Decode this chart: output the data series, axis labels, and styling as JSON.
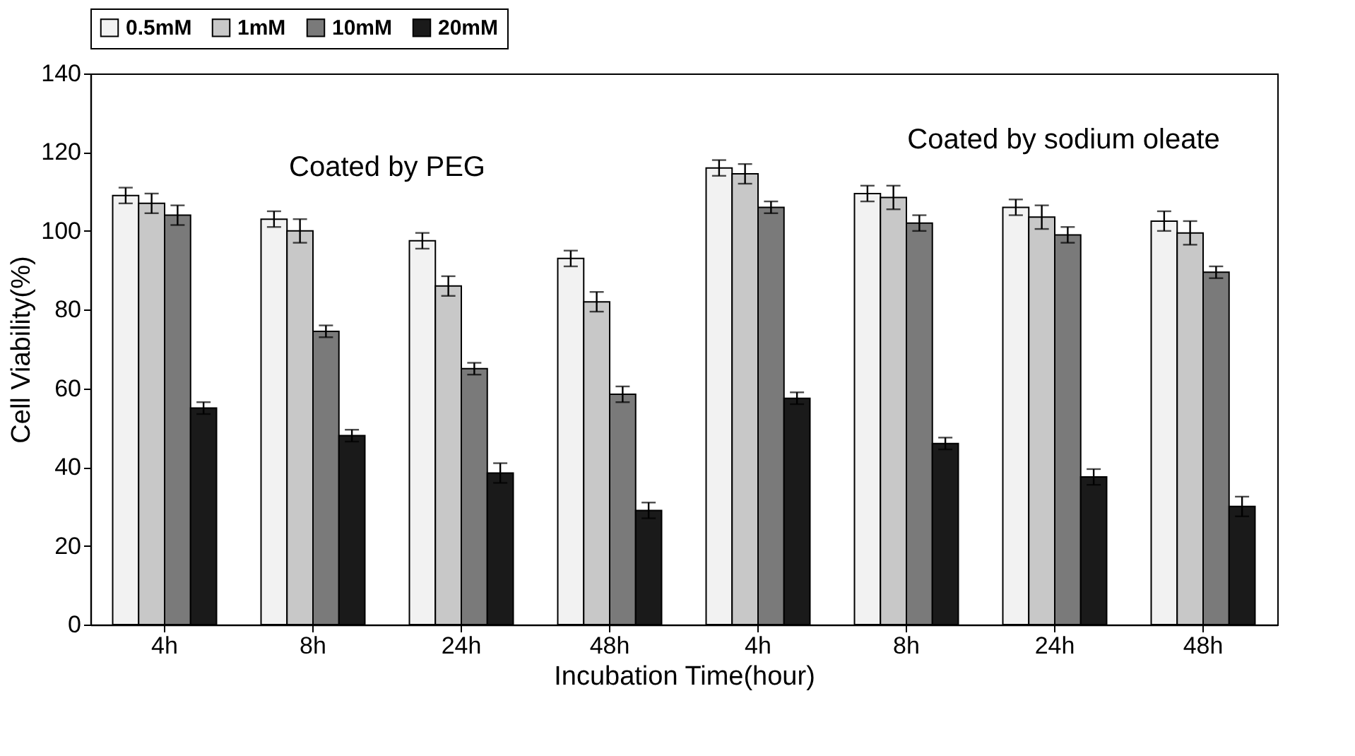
{
  "chart_data": {
    "type": "bar",
    "xlabel": "Incubation Time(hour)",
    "ylabel": "Cell Viability(%)",
    "categories": [
      "4h",
      "8h",
      "24h",
      "48h",
      "4h",
      "8h",
      "24h",
      "48h"
    ],
    "series": [
      {
        "name": "0.5mM",
        "color": "#f2f2f2",
        "values": [
          109,
          103,
          97.5,
          93,
          116,
          109.5,
          106,
          102.5
        ],
        "errors": [
          2,
          2,
          2,
          2,
          2,
          2,
          2,
          2.5
        ]
      },
      {
        "name": "1mM",
        "color": "#c8c8c8",
        "values": [
          107,
          100,
          86,
          82,
          114.5,
          108.5,
          103.5,
          99.5
        ],
        "errors": [
          2.5,
          3,
          2.5,
          2.5,
          2.5,
          3,
          3,
          3
        ]
      },
      {
        "name": "10mM",
        "color": "#7a7a7a",
        "values": [
          104,
          74.5,
          65,
          58.5,
          106,
          102,
          99,
          89.5
        ],
        "errors": [
          2.5,
          1.5,
          1.5,
          2,
          1.5,
          2,
          2,
          1.5
        ]
      },
      {
        "name": "20mM",
        "color": "#1a1a1a",
        "values": [
          55,
          48,
          38.5,
          29,
          57.5,
          46,
          37.5,
          30
        ],
        "errors": [
          1.5,
          1.5,
          2.5,
          2,
          1.5,
          1.5,
          2,
          2.5
        ]
      }
    ],
    "ylim": [
      0,
      140
    ],
    "yticks": [
      0,
      20,
      40,
      60,
      80,
      100,
      120,
      140
    ],
    "grid": false,
    "legend": "top",
    "annotations": [
      "Coated by PEG",
      "Coated by sodium oleate"
    ]
  }
}
